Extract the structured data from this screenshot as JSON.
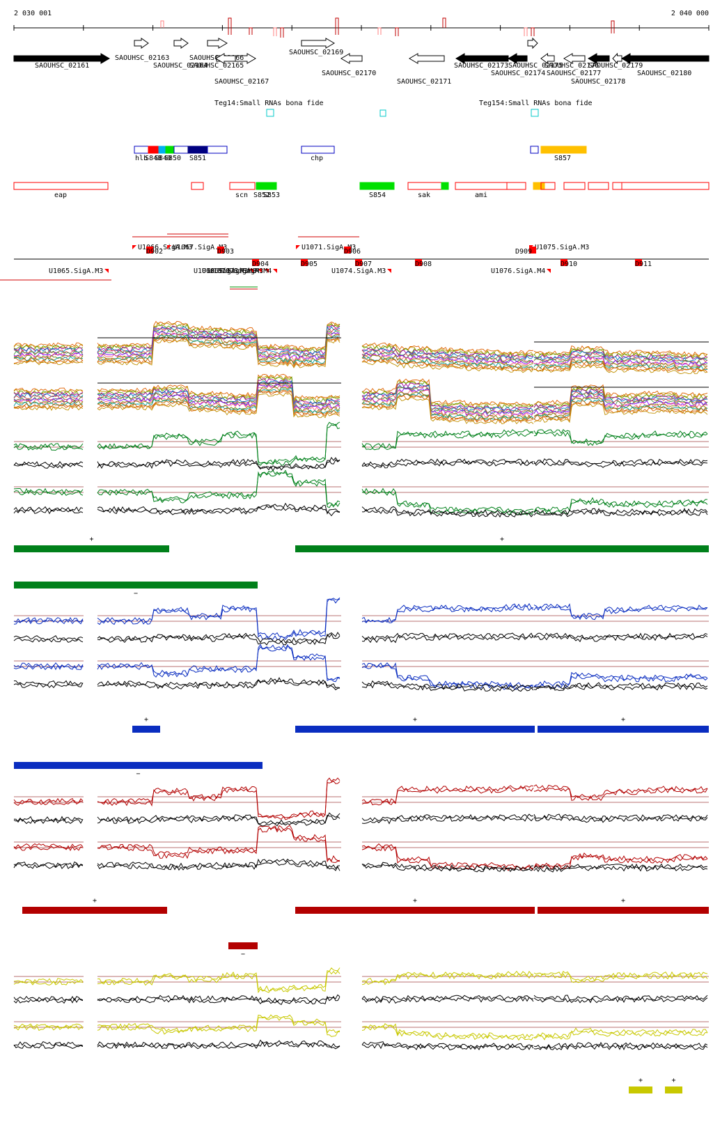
{
  "ruler": {
    "start_label": "2 030 001",
    "end_label": "2 040 000"
  },
  "genes": [
    {
      "label": "SAOUHSC_02161",
      "fill": "#000000",
      "dir": "r"
    },
    {
      "label": "SAOUHSC_02163",
      "fill": "#ffffff",
      "dir": "r"
    },
    {
      "label": "SAOUHSC_02164",
      "fill": "#ffffff",
      "dir": "r"
    },
    {
      "label": "SAOUHSC_02165",
      "fill": "#ffffff",
      "dir": "r"
    },
    {
      "label": "SAOUHSC_02166",
      "fill": "#ffffff",
      "dir": "r"
    },
    {
      "label": "SAOUHSC_02167",
      "fill": "#ffffff",
      "dir": "l"
    },
    {
      "label": "SAOUHSC_02169",
      "fill": "#ffffff",
      "dir": "r"
    },
    {
      "label": "SAOUHSC_02170",
      "fill": "#ffffff",
      "dir": "l"
    },
    {
      "label": "SAOUHSC_02171",
      "fill": "#ffffff",
      "dir": "l"
    },
    {
      "label": "SAOUHSC_02173",
      "fill": "#000000",
      "dir": "l"
    },
    {
      "label": "SAOUHSC_02174",
      "fill": "#000000",
      "dir": "l"
    },
    {
      "label": "SAOUHSC_02175",
      "fill": "#ffffff",
      "dir": "r"
    },
    {
      "label": "SAOUHSC_02176",
      "fill": "#ffffff",
      "dir": "l"
    },
    {
      "label": "SAOUHSC_02177",
      "fill": "#ffffff",
      "dir": "l"
    },
    {
      "label": "SAOUHSC_02178",
      "fill": "#000000",
      "dir": "l"
    },
    {
      "label": "SAOUHSC_02179",
      "fill": "#ffffff",
      "dir": "l"
    },
    {
      "label": "SAOUHSC_02180",
      "fill": "#000000",
      "dir": "l"
    }
  ],
  "small_rnas": [
    {
      "label": "Teg14:Small RNAs bona fide"
    },
    {
      "label": "Teg154:Small RNAs bona fide"
    }
  ],
  "segments": [
    {
      "label": "hlb"
    },
    {
      "label": "S848"
    },
    {
      "label": "S849"
    },
    {
      "label": "S850"
    },
    {
      "label": "S851"
    },
    {
      "label": "chp"
    },
    {
      "label": "S857"
    }
  ],
  "features": [
    {
      "label": "eap"
    },
    {
      "label": "scn"
    },
    {
      "label": "S852"
    },
    {
      "label": "S853"
    },
    {
      "label": "S854"
    },
    {
      "label": "sak"
    },
    {
      "label": "ami"
    }
  ],
  "promoters_top": [
    {
      "label": "U1066.SigA.M3"
    },
    {
      "label": "U1067.SigA.M3"
    },
    {
      "label": "U1071.SigA.M3"
    },
    {
      "label": "U1075.SigA.M3"
    }
  ],
  "promoters_bottom": [
    {
      "label": "U1065.SigA.M3"
    },
    {
      "label": "U1068.SigA.M3"
    },
    {
      "label": "U1069.SigA.M3"
    },
    {
      "label": "U1070.SigA.M3"
    },
    {
      "label": "U1073.SigA.M4"
    },
    {
      "label": "U1074.SigA.M3"
    },
    {
      "label": "U1076.SigA.M4"
    }
  ],
  "terminators": [
    {
      "label": "D902"
    },
    {
      "label": "D903"
    },
    {
      "label": "D904"
    },
    {
      "label": "D905"
    },
    {
      "label": "D906"
    },
    {
      "label": "D907"
    },
    {
      "label": "D908"
    },
    {
      "label": "D909"
    },
    {
      "label": "D910"
    },
    {
      "label": "D911"
    }
  ],
  "strand_plus": "+",
  "strand_minus": "−",
  "colors": {
    "green": "#00801a",
    "blue": "#0a2dc0",
    "red": "#b30000",
    "yellow": "#c8c800",
    "orange": "#ffc000",
    "brightgreen": "#00e000",
    "cyan": "#00c8c8",
    "navy": "#000080",
    "featurered": "#ff0000"
  }
}
